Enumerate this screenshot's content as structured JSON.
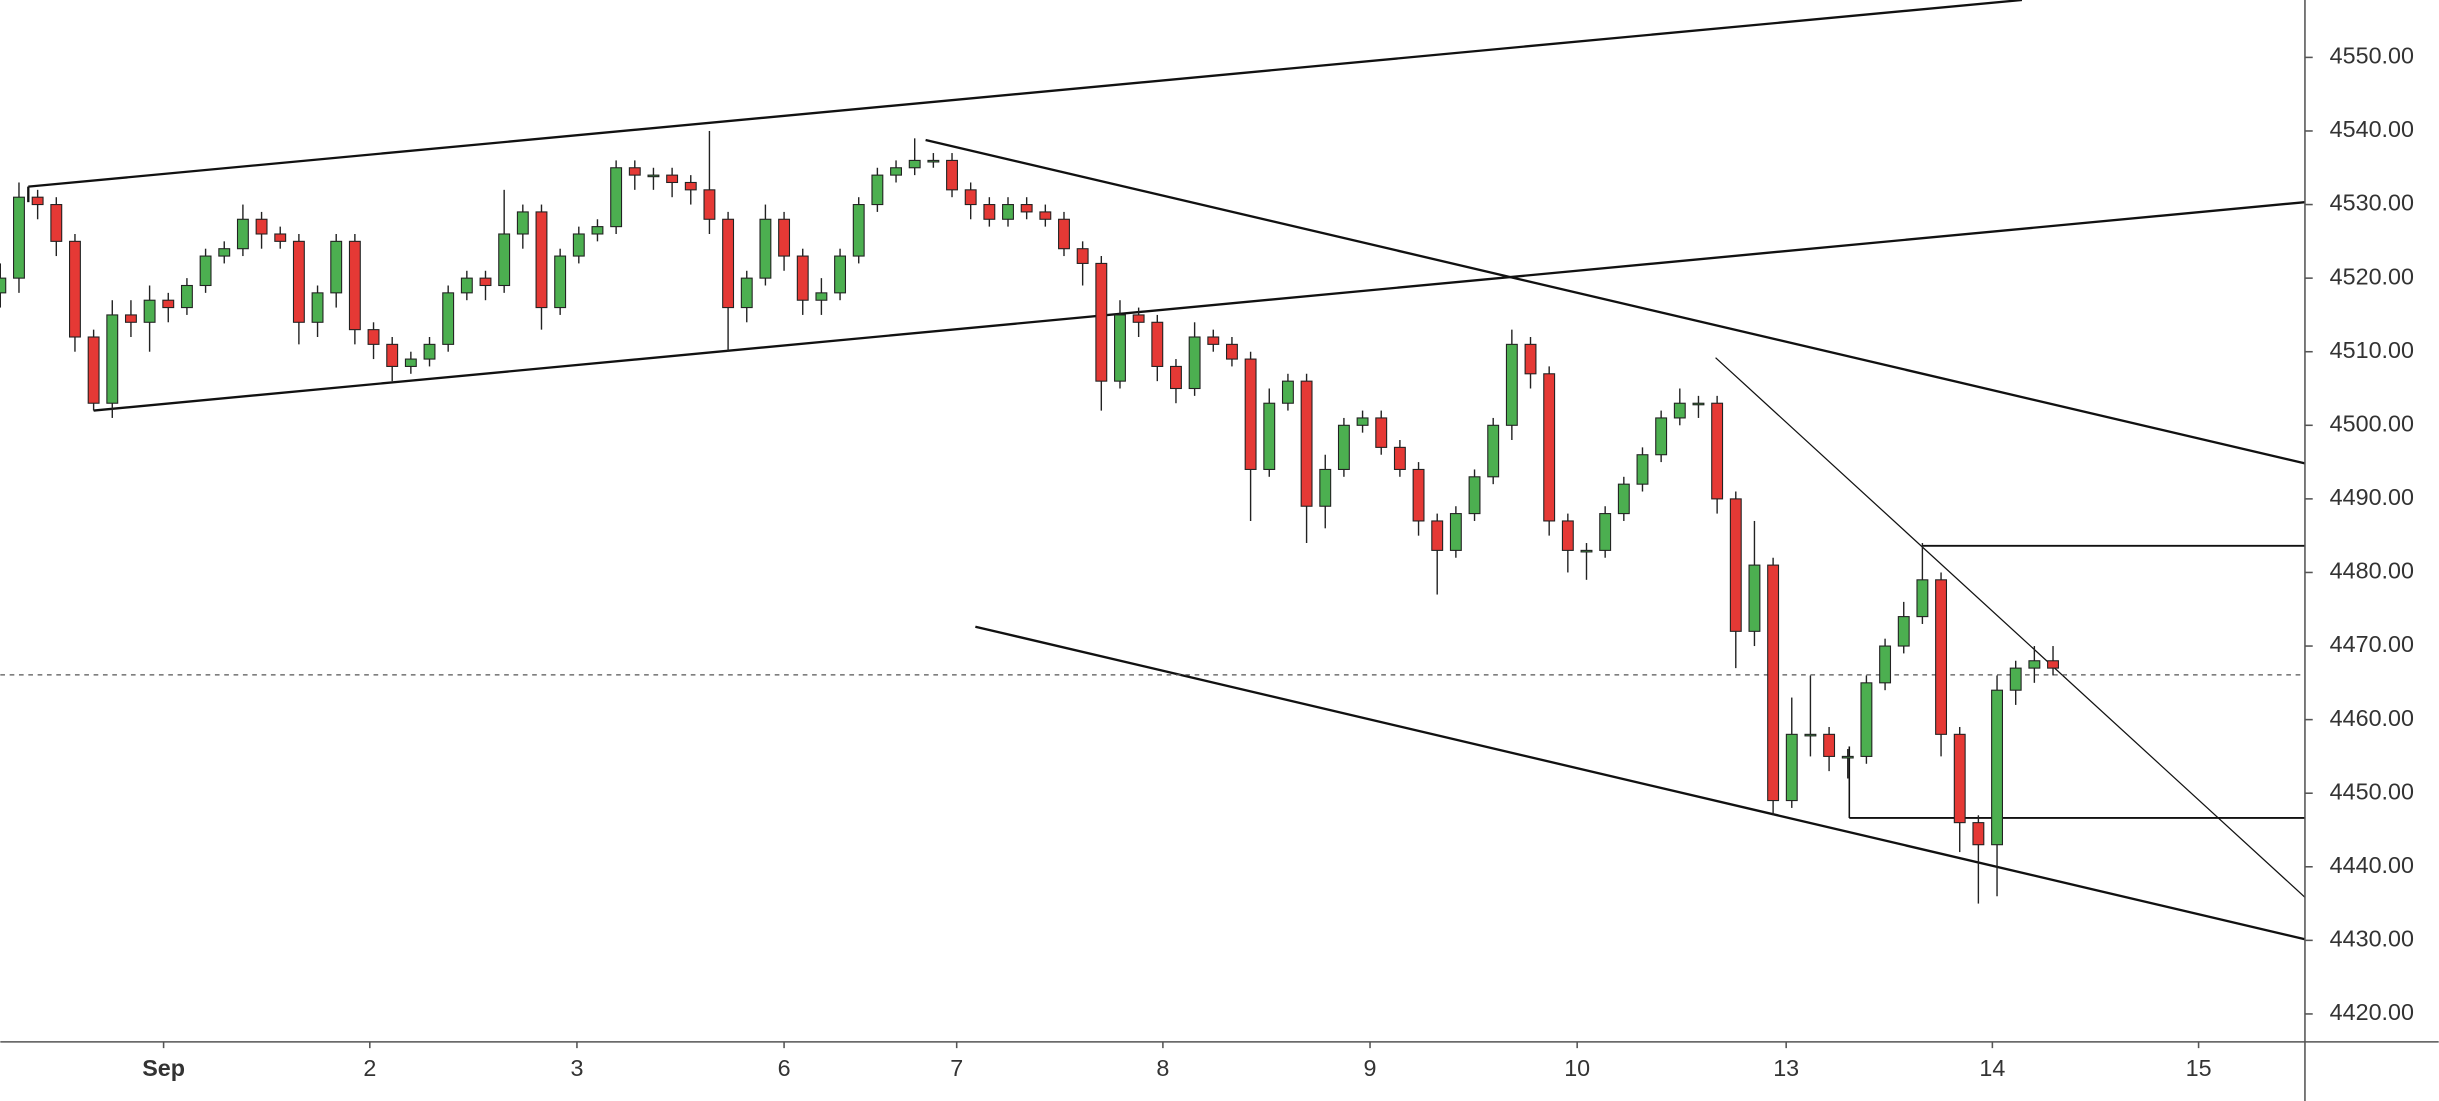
{
  "chart_data": {
    "type": "candlestick",
    "open": [
      4518,
      4520,
      4531,
      4530,
      4525,
      4512,
      4503,
      4515,
      4514,
      4517,
      4516,
      4519,
      4523,
      4524,
      4528,
      4526,
      4525,
      4514,
      4518,
      4525,
      4513,
      4511,
      4508,
      4509,
      4511,
      4518,
      4520,
      4519,
      4526,
      4529,
      4516,
      4523,
      4526,
      4527,
      4535,
      4534,
      4534,
      4533,
      4532,
      4528,
      4516,
      4520,
      4528,
      4523,
      4517,
      4518,
      4523,
      4530,
      4534,
      4535,
      4536,
      4536,
      4532,
      4530,
      4528,
      4530,
      4529,
      4528,
      4524,
      4522,
      4506,
      4515,
      4514,
      4508,
      4505,
      4512,
      4511,
      4509,
      4494,
      4503,
      4506,
      4489,
      4494,
      4500,
      4501,
      4497,
      4494,
      4487,
      4483,
      4488,
      4493,
      4500,
      4511,
      4507,
      4487,
      4483,
      4483,
      4488,
      4492,
      4496,
      4501,
      4503,
      4503,
      4490,
      4472,
      4481,
      4449,
      4458,
      4458,
      4455,
      4455,
      4465,
      4470,
      4474,
      4479,
      4458,
      4446,
      4443,
      4464,
      4467,
      4468
    ],
    "high": [
      4522,
      4533,
      4532,
      4531,
      4526,
      4513,
      4517,
      4517,
      4519,
      4518,
      4520,
      4524,
      4525,
      4530,
      4529,
      4527,
      4526,
      4519,
      4526,
      4526,
      4514,
      4512,
      4510,
      4512,
      4519,
      4521,
      4521,
      4532,
      4530,
      4530,
      4524,
      4527,
      4528,
      4536,
      4536,
      4535,
      4535,
      4534,
      4540,
      4529,
      4521,
      4530,
      4529,
      4524,
      4520,
      4524,
      4531,
      4535,
      4536,
      4539,
      4537,
      4537,
      4533,
      4531,
      4531,
      4531,
      4530,
      4529,
      4525,
      4523,
      4517,
      4516,
      4515,
      4509,
      4514,
      4513,
      4512,
      4510,
      4505,
      4507,
      4507,
      4496,
      4501,
      4502,
      4502,
      4498,
      4495,
      4488,
      4489,
      4494,
      4501,
      4513,
      4512,
      4508,
      4488,
      4484,
      4489,
      4493,
      4497,
      4502,
      4505,
      4504,
      4504,
      4491,
      4487,
      4482,
      4463,
      4466,
      4459,
      4456,
      4466,
      4471,
      4476,
      4484,
      4480,
      4459,
      4447,
      4466,
      4468,
      4470,
      4470
    ],
    "low": [
      4516,
      4518,
      4528,
      4523,
      4510,
      4502,
      4501,
      4512,
      4510,
      4514,
      4515,
      4518,
      4522,
      4523,
      4524,
      4524,
      4511,
      4512,
      4516,
      4511,
      4509,
      4506,
      4507,
      4508,
      4510,
      4517,
      4517,
      4518,
      4524,
      4513,
      4515,
      4522,
      4525,
      4526,
      4532,
      4532,
      4531,
      4530,
      4526,
      4510,
      4514,
      4519,
      4521,
      4515,
      4515,
      4517,
      4522,
      4529,
      4533,
      4534,
      4535,
      4531,
      4528,
      4527,
      4527,
      4528,
      4527,
      4523,
      4519,
      4502,
      4505,
      4512,
      4506,
      4503,
      4504,
      4510,
      4508,
      4487,
      4493,
      4502,
      4484,
      4486,
      4493,
      4499,
      4496,
      4493,
      4485,
      4477,
      4482,
      4487,
      4492,
      4498,
      4505,
      4485,
      4480,
      4479,
      4482,
      4487,
      4491,
      4495,
      4500,
      4501,
      4488,
      4467,
      4470,
      4447,
      4448,
      4455,
      4453,
      4452,
      4454,
      4464,
      4469,
      4473,
      4455,
      4442,
      4435,
      4436,
      4462,
      4465,
      4466
    ],
    "close": [
      4520,
      4531,
      4530,
      4525,
      4512,
      4503,
      4515,
      4514,
      4517,
      4516,
      4519,
      4523,
      4524,
      4528,
      4526,
      4525,
      4514,
      4518,
      4525,
      4513,
      4511,
      4508,
      4509,
      4511,
      4518,
      4520,
      4519,
      4526,
      4529,
      4516,
      4523,
      4526,
      4527,
      4535,
      4534,
      4534,
      4533,
      4532,
      4528,
      4516,
      4520,
      4528,
      4523,
      4517,
      4518,
      4523,
      4530,
      4534,
      4535,
      4536,
      4536,
      4532,
      4530,
      4528,
      4530,
      4529,
      4528,
      4524,
      4522,
      4506,
      4515,
      4514,
      4508,
      4505,
      4512,
      4511,
      4509,
      4494,
      4503,
      4506,
      4489,
      4494,
      4500,
      4501,
      4497,
      4494,
      4487,
      4483,
      4488,
      4493,
      4500,
      4511,
      4507,
      4487,
      4483,
      4483,
      4488,
      4492,
      4496,
      4501,
      4503,
      4503,
      4490,
      4472,
      4481,
      4449,
      4458,
      4458,
      4455,
      4455,
      4465,
      4470,
      4474,
      4479,
      4458,
      4446,
      4443,
      4464,
      4467,
      4468,
      4467
    ],
    "up_color": "#4caf50",
    "down_color": "#e53935",
    "xlim": [
      0,
      123.5
    ],
    "xticks": [
      {
        "value": 8.75,
        "label": "Sep"
      },
      {
        "value": 19.8,
        "label": "2"
      },
      {
        "value": 30.9,
        "label": "3"
      },
      {
        "value": 42,
        "label": "6"
      },
      {
        "value": 51.25,
        "label": "7"
      },
      {
        "value": 62.3,
        "label": "8"
      },
      {
        "value": 73.4,
        "label": "9"
      },
      {
        "value": 84.5,
        "label": "10"
      },
      {
        "value": 95.7,
        "label": "13"
      },
      {
        "value": 106.75,
        "label": "14"
      },
      {
        "value": 117.8,
        "label": "15"
      }
    ],
    "ylim": [
      4416.2,
      4557.8
    ],
    "yticks": [
      {
        "value": 4420,
        "label": "4420.00"
      },
      {
        "value": 4430,
        "label": "4430.00"
      },
      {
        "value": 4440,
        "label": "4440.00"
      },
      {
        "value": 4450,
        "label": "4450.00"
      },
      {
        "value": 4460,
        "label": "4460.00"
      },
      {
        "value": 4470,
        "label": "4470.00"
      },
      {
        "value": 4480,
        "label": "4480.00"
      },
      {
        "value": 4490,
        "label": "4490.00"
      },
      {
        "value": 4500,
        "label": "4500.00"
      },
      {
        "value": 4510,
        "label": "4510.00"
      },
      {
        "value": 4520,
        "label": "4520.00"
      },
      {
        "value": 4530,
        "label": "4530.00"
      },
      {
        "value": 4540,
        "label": "4540.00"
      },
      {
        "value": 4550,
        "label": "4550.00"
      }
    ]
  }
}
